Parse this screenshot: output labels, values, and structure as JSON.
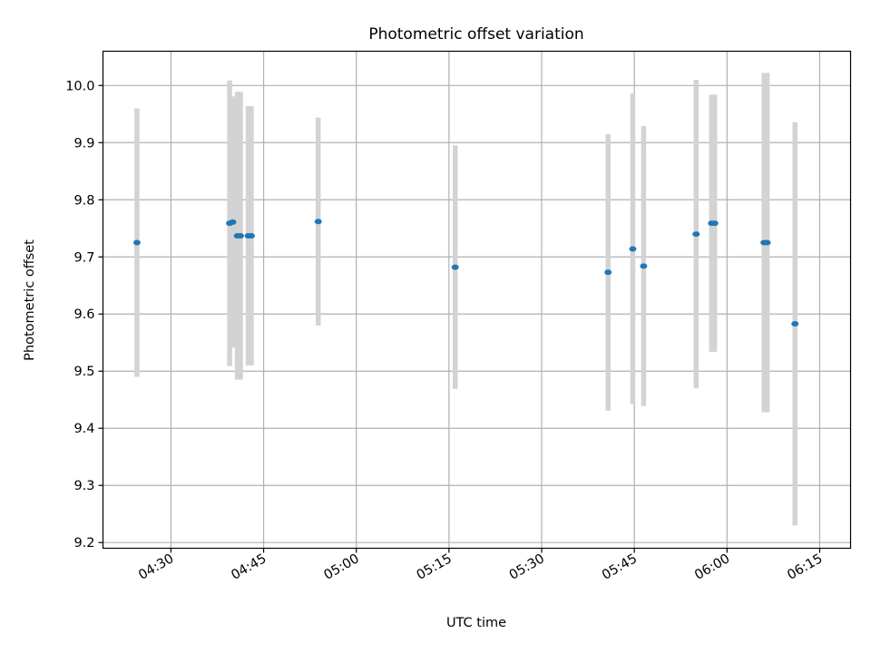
{
  "chart_data": {
    "type": "scatter",
    "title": "Photometric offset variation",
    "xlabel": "UTC time",
    "ylabel": "Photometric offset",
    "grid": true,
    "xlim": [
      "04:19",
      "06:20"
    ],
    "ylim": [
      9.19,
      10.06
    ],
    "xticks": [
      "04:30",
      "04:45",
      "05:00",
      "05:15",
      "05:30",
      "05:45",
      "06:00",
      "06:15"
    ],
    "yticks": [
      9.2,
      9.3,
      9.4,
      9.5,
      9.6,
      9.7,
      9.8,
      9.9,
      10.0
    ],
    "yticklabels": [
      "9.2",
      "9.3",
      "9.4",
      "9.5",
      "9.6",
      "9.7",
      "9.8",
      "9.9",
      "10.0"
    ],
    "errorbar_color": "#d3d3d3",
    "marker_color": "#1f77b4",
    "series": [
      {
        "x": [
          "04:24:30",
          "04:39:30",
          "04:40:00",
          "04:40:45",
          "04:41:15",
          "04:42:30",
          "04:43:00",
          "04:53:50",
          "05:16:00",
          "05:40:45",
          "05:44:45",
          "05:46:30",
          "05:55:00",
          "05:57:30",
          "05:58:00",
          "06:06:00",
          "06:06:30",
          "06:11:00"
        ],
        "y": [
          9.725,
          9.759,
          9.761,
          9.737,
          9.737,
          9.737,
          9.737,
          9.762,
          9.682,
          9.673,
          9.714,
          9.684,
          9.74,
          9.759,
          9.759,
          9.725,
          9.725,
          9.583
        ],
        "yerr": [
          0.235,
          0.25,
          0.22,
          0.252,
          0.252,
          0.227,
          0.227,
          0.182,
          0.213,
          0.242,
          0.272,
          0.245,
          0.27,
          0.225,
          0.225,
          0.297,
          0.297,
          0.353
        ]
      }
    ]
  }
}
